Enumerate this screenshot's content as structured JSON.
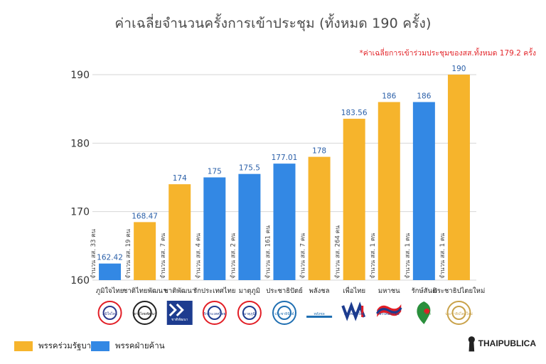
{
  "title": "ค่าเฉลี่ยจำนวนครั้งการเข้าประชุม (ทั้งหมด 190 ครั้ง)",
  "note": "*ค่าเฉลี่ยการเข้าร่วมประชุมของสส.ทั้งหมด 179.2 ครั้ง",
  "brand": "THAIPUBLICA",
  "colors": {
    "government": "#f6b42c",
    "opposition": "#3388e4"
  },
  "legend": [
    {
      "label": "พรรคร่วมรัฐบาล",
      "color": "#f6b42c"
    },
    {
      "label": "พรรคฝ่ายค้าน",
      "color": "#3388e4"
    }
  ],
  "chart_data": {
    "type": "bar",
    "title": "ค่าเฉลี่ยจำนวนครั้งการเข้าประชุม (ทั้งหมด 190 ครั้ง)",
    "ylim": [
      160,
      190
    ],
    "yticks": [
      "160",
      "170",
      "180",
      "190"
    ],
    "grid": "horizontal",
    "legend_position": "bottom-left",
    "categories": [
      "ภูมิใจไทย",
      "ชาติไทยพัฒนา",
      "ชาติพัฒนา",
      "รักประเทศไทย",
      "มาตุภูมิ",
      "ประชาธิปัตย์",
      "พลังชล",
      "เพื่อไทย",
      "มหาชน",
      "รักษ์สันติ",
      "ประชาธิปไตยใหม่"
    ],
    "values": [
      162.42,
      168.47,
      174,
      175,
      175.5,
      177.01,
      178,
      183.56,
      186,
      186,
      190
    ],
    "value_labels": [
      "162.42",
      "168.47",
      "174",
      "175",
      "175.5",
      "177.01",
      "178",
      "183.56",
      "186",
      "186",
      "190"
    ],
    "groups": [
      "opposition",
      "government",
      "government",
      "opposition",
      "opposition",
      "opposition",
      "government",
      "government",
      "government",
      "opposition",
      "government"
    ],
    "mp_counts": [
      "จำนวน สส. 33 คน",
      "จำนวน สส. 19 คน",
      "จำนวน สส. 7 คน",
      "จำนวน สส. 4 คน",
      "จำนวน สส. 2 คน",
      "จำนวน สส. 161 คน",
      "จำนวน สส. 7 คน",
      "จำนวน สส. 264 คน",
      "จำนวน สส. 1 คน",
      "จำนวน สส. 1 คน",
      "จำนวน สส. 1 คน"
    ],
    "logos": [
      {
        "text": "ภูมิใจไทย",
        "fg": "#2d3a8c",
        "accent": "#e21e26"
      },
      {
        "text": "ชาติไทยพัฒนา",
        "fg": "#222222",
        "accent": "#222222"
      },
      {
        "text": "ชาติพัฒนา",
        "fg": "#ffffff",
        "accent": "#1d3c8f"
      },
      {
        "text": "รักประเทศไทย",
        "fg": "#1d3c8f",
        "accent": "#e21e26"
      },
      {
        "text": "มาตุภูมิ",
        "fg": "#1d3c8f",
        "accent": "#e21e26"
      },
      {
        "text": "ประชาธิปัตย์",
        "fg": "#1f6fb2",
        "accent": "#1f6fb2"
      },
      {
        "text": "พลังชล",
        "fg": "#1f6fb2",
        "accent": "#1f6fb2"
      },
      {
        "text": "พรรคเพื่อไทย",
        "fg": "#1d3c8f",
        "accent": "#e21e26"
      },
      {
        "text": "พรรคมหาชน",
        "fg": "#1d3c8f",
        "accent": "#e21e26"
      },
      {
        "text": "รักษ์สันติ",
        "fg": "#2a8f3c",
        "accent": "#e21e26"
      },
      {
        "text": "ประชาธิปไตยใหม่",
        "fg": "#c9a24a",
        "accent": "#c9a24a"
      }
    ]
  }
}
